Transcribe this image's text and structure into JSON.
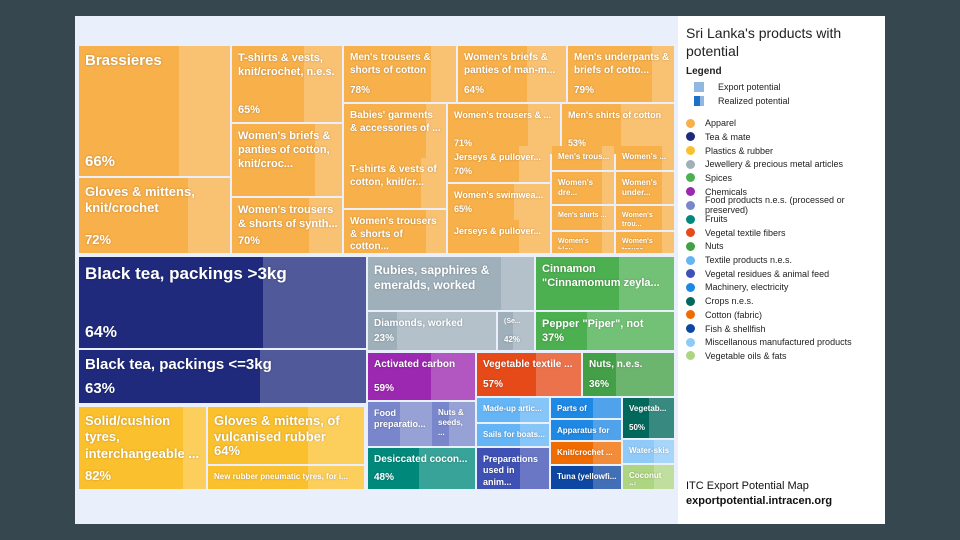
{
  "title": "Sri Lanka's products with potential",
  "legend_heading": "Legend",
  "key": {
    "export": "Export potential",
    "realized": "Realized potential"
  },
  "footer": {
    "line1": "ITC Export Potential Map",
    "line2": "exportpotential.intracen.org"
  },
  "chart_data": {
    "type": "treemap",
    "title": "Sri Lanka's products with potential",
    "sectors": [
      {
        "name": "Apparel",
        "color": "#f7b04a"
      },
      {
        "name": "Tea & mate",
        "color": "#1f2a7c"
      },
      {
        "name": "Plastics & rubber",
        "color": "#fbc02d"
      },
      {
        "name": "Jewellery & precious metal articles",
        "color": "#9fb0bb"
      },
      {
        "name": "Spices",
        "color": "#4caf50"
      },
      {
        "name": "Chemicals",
        "color": "#9c27b0"
      },
      {
        "name": "Food products n.e.s. (processed or preserved)",
        "color": "#7986cb"
      },
      {
        "name": "Fruits",
        "color": "#00897b"
      },
      {
        "name": "Vegetal textile fibers",
        "color": "#e64a19"
      },
      {
        "name": "Nuts",
        "color": "#43a047"
      },
      {
        "name": "Textile products n.e.s.",
        "color": "#64b5f6"
      },
      {
        "name": "Vegetal residues & animal feed",
        "color": "#3f51b5"
      },
      {
        "name": "Machinery, electricity",
        "color": "#1e88e5"
      },
      {
        "name": "Crops n.e.s.",
        "color": "#00695c"
      },
      {
        "name": "Cotton (fabric)",
        "color": "#ef6c00"
      },
      {
        "name": "Fish & shellfish",
        "color": "#0d47a1"
      },
      {
        "name": "Miscellanous manufactured products",
        "color": "#90caf9"
      },
      {
        "name": "Vegetable oils & fats",
        "color": "#aed581"
      }
    ],
    "products": [
      {
        "label": "Brassieres",
        "pct": "66%",
        "sector": 0
      },
      {
        "label": "Gloves & mittens, knit/crochet",
        "pct": "72%",
        "sector": 0
      },
      {
        "label": "T-shirts & vests, knit/crochet, n.e.s.",
        "pct": "65%",
        "sector": 0
      },
      {
        "label": "Women's briefs & panties of cotton, knit/croc...",
        "pct": "",
        "sector": 0
      },
      {
        "label": "Women's trousers & shorts of synth...",
        "pct": "70%",
        "sector": 0
      },
      {
        "label": "Men's trousers & shorts of cotton",
        "pct": "78%",
        "sector": 0
      },
      {
        "label": "Women's briefs & panties of man-m...",
        "pct": "64%",
        "sector": 0
      },
      {
        "label": "Men's underpants & briefs of cotto...",
        "pct": "79%",
        "sector": 0
      },
      {
        "label": "Babies' garments & accessories of ...",
        "pct": "",
        "sector": 0
      },
      {
        "label": "Women's trousers & ...",
        "pct": "71%",
        "sector": 0
      },
      {
        "label": "Men's shirts of cotton",
        "pct": "53%",
        "sector": 0
      },
      {
        "label": "T-shirts & vests of cotton, knit/cr...",
        "pct": "",
        "sector": 0
      },
      {
        "label": "Jerseys & pullover...",
        "pct": "70%",
        "sector": 0
      },
      {
        "label": "Women's swimwea...",
        "pct": "65%",
        "sector": 0
      },
      {
        "label": "Jerseys & pullover...",
        "pct": "",
        "sector": 0
      },
      {
        "label": "Women's trousers & shorts of cotton...",
        "pct": "",
        "sector": 0
      },
      {
        "label": "Men's trous...",
        "pct": "",
        "sector": 0
      },
      {
        "label": "Women's ...",
        "pct": "",
        "sector": 0
      },
      {
        "label": "Women's dre...",
        "pct": "",
        "sector": 0
      },
      {
        "label": "Women's under...",
        "pct": "",
        "sector": 0
      },
      {
        "label": "Men's shirts ...",
        "pct": "",
        "sector": 0
      },
      {
        "label": "Women's blou...",
        "pct": "",
        "sector": 0
      },
      {
        "label": "Women's trou...",
        "pct": "",
        "sector": 0
      },
      {
        "label": "Women's trouse...",
        "pct": "",
        "sector": 0
      },
      {
        "label": "Black tea, packings >3kg",
        "pct": "64%",
        "sector": 1
      },
      {
        "label": "Black tea, packings <=3kg",
        "pct": "63%",
        "sector": 1
      },
      {
        "label": "Solid/cushion tyres, interchangeable ...",
        "pct": "82%",
        "sector": 2
      },
      {
        "label": "Gloves & mittens, of vulcanised rubber",
        "pct": "64%",
        "sector": 2
      },
      {
        "label": "New rubber pneumatic tyres, for i...",
        "pct": "",
        "sector": 2
      },
      {
        "label": "Rubies, sapphires & emeralds, worked",
        "pct": "",
        "sector": 3
      },
      {
        "label": "Diamonds, worked",
        "pct": "23%",
        "sector": 3
      },
      {
        "label": "(Se...",
        "pct": "42%",
        "sector": 3
      },
      {
        "label": "Cinnamon \"Cinnamomum zeyla...",
        "pct": "",
        "sector": 4
      },
      {
        "label": "Pepper \"Piper\", not cru...",
        "pct": "37%",
        "sector": 4
      },
      {
        "label": "Activated carbon",
        "pct": "59%",
        "sector": 5
      },
      {
        "label": "Food preparatio...",
        "pct": "",
        "sector": 6
      },
      {
        "label": "Nuts & seeds, ...",
        "pct": "",
        "sector": 6
      },
      {
        "label": "Desiccated cocon...",
        "pct": "48%",
        "sector": 7
      },
      {
        "label": "Vegetable textile ...",
        "pct": "57%",
        "sector": 8
      },
      {
        "label": "Nuts, n.e.s.",
        "pct": "36%",
        "sector": 9
      },
      {
        "label": "Made-up artic...",
        "pct": "",
        "sector": 10
      },
      {
        "label": "Sails for boats...",
        "pct": "",
        "sector": 10
      },
      {
        "label": "Preparations used in anim...",
        "pct": "",
        "sector": 11
      },
      {
        "label": "Parts of machi...",
        "pct": "",
        "sector": 12
      },
      {
        "label": "Apparatus for ...",
        "pct": "",
        "sector": 12
      },
      {
        "label": "Vegetab...",
        "pct": "50%",
        "sector": 13
      },
      {
        "label": "Knit/crochet ...",
        "pct": "",
        "sector": 14
      },
      {
        "label": "Tuna (yellowfi...",
        "pct": "",
        "sector": 15
      },
      {
        "label": "Water-skis",
        "pct": "",
        "sector": 16
      },
      {
        "label": "Coconut oi...",
        "pct": "",
        "sector": 17
      }
    ]
  }
}
